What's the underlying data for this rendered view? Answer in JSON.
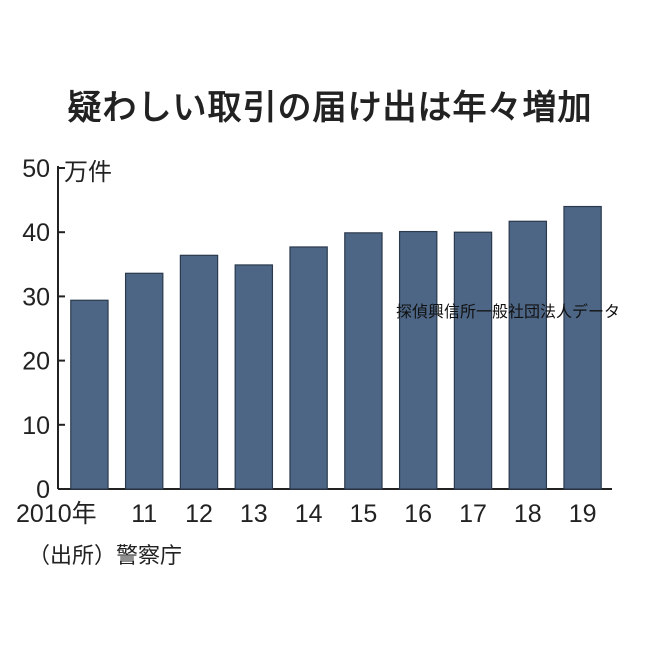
{
  "chart_data": {
    "type": "bar",
    "title": "疑わしい取引の届け出は年々増加",
    "unit_label": "万件",
    "categories": [
      "2010年",
      "11",
      "12",
      "13",
      "14",
      "15",
      "16",
      "17",
      "18",
      "19"
    ],
    "values": [
      29.4,
      33.6,
      36.4,
      34.9,
      37.7,
      39.9,
      40.1,
      40.0,
      41.7,
      44.0
    ],
    "yticks": [
      0,
      10,
      20,
      30,
      40,
      50
    ],
    "ylim": [
      0,
      50
    ],
    "source": "（出所）警察庁",
    "grid": false,
    "bar_color": "#4d6685"
  },
  "overlay_note": "探偵興信所一般社団法人データ"
}
